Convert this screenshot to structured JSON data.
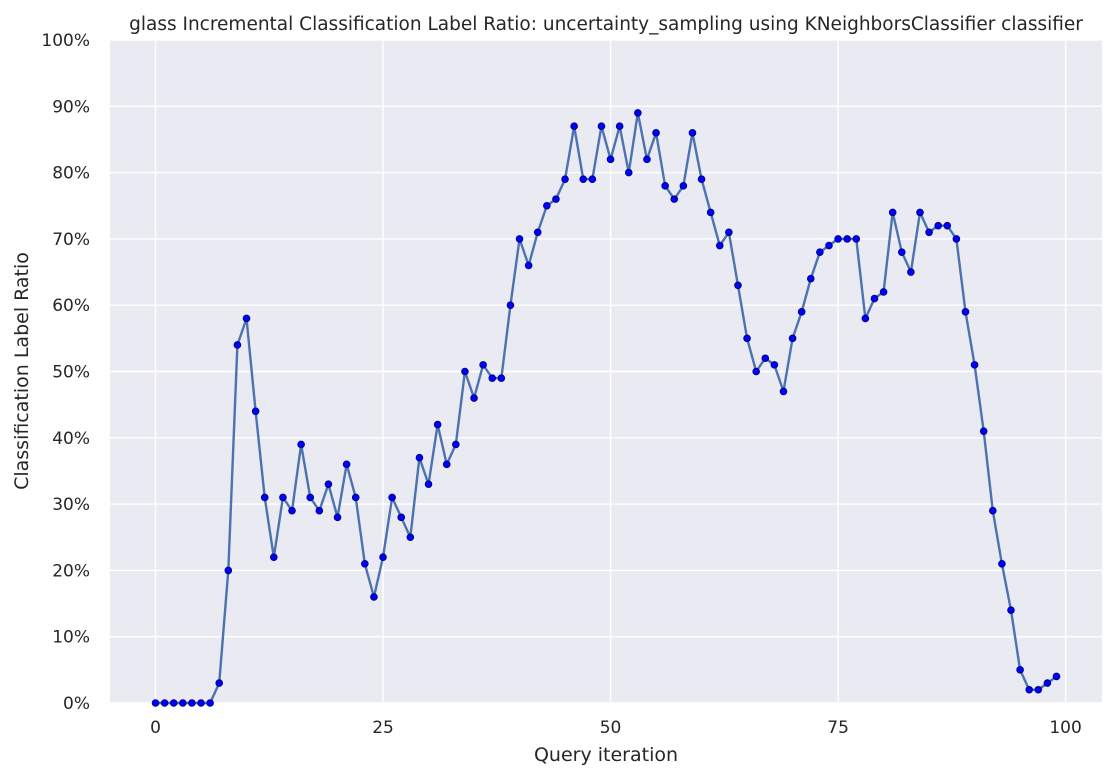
{
  "chart_data": {
    "type": "line",
    "title": "glass Incremental Classification Label Ratio: uncertainty_sampling using KNeighborsClassifier classifier",
    "xlabel": "Query iteration",
    "ylabel": "Classification Label Ratio",
    "xlim": [
      -5,
      104
    ],
    "ylim": [
      0,
      1
    ],
    "xticks": [
      0,
      25,
      50,
      75,
      100
    ],
    "xtick_labels": [
      "0",
      "25",
      "50",
      "75",
      "100"
    ],
    "yticks": [
      0,
      0.1,
      0.2,
      0.3,
      0.4,
      0.5,
      0.6,
      0.7,
      0.8,
      0.9,
      1.0
    ],
    "ytick_labels": [
      "0%",
      "10%",
      "20%",
      "30%",
      "40%",
      "50%",
      "60%",
      "70%",
      "80%",
      "90%",
      "100%"
    ],
    "grid": true,
    "legend": "none",
    "colors": {
      "background": "#eaeaf2",
      "grid": "#ffffff",
      "line": "#4c72b0",
      "marker_fill": "#0000ff",
      "marker_edge": "#00008b"
    },
    "series": [
      {
        "x": [
          0,
          1,
          2,
          3,
          4,
          5,
          6,
          7,
          8,
          9,
          10,
          11,
          12,
          13,
          14,
          15,
          16,
          17,
          18,
          19,
          20,
          21,
          22,
          23,
          24,
          25,
          26,
          27,
          28,
          29,
          30,
          31,
          32,
          33,
          34,
          35,
          36,
          37,
          38,
          39,
          40,
          41,
          42,
          43,
          44,
          45,
          46,
          47,
          48,
          49,
          50,
          51,
          52,
          53,
          54,
          55,
          56,
          57,
          58,
          59,
          60,
          61,
          62,
          63,
          64,
          65,
          66,
          67,
          68,
          69,
          70,
          71,
          72,
          73,
          74,
          75,
          76,
          77,
          78,
          79,
          80,
          81,
          82,
          83,
          84,
          85,
          86,
          87,
          88,
          89,
          90,
          91,
          92,
          93,
          94,
          95,
          96,
          97,
          98,
          99
        ],
        "y": [
          0,
          0,
          0,
          0,
          0,
          0,
          0,
          0.03,
          0.2,
          0.54,
          0.58,
          0.44,
          0.31,
          0.22,
          0.31,
          0.29,
          0.39,
          0.31,
          0.29,
          0.33,
          0.28,
          0.36,
          0.31,
          0.21,
          0.16,
          0.22,
          0.31,
          0.28,
          0.25,
          0.37,
          0.33,
          0.42,
          0.36,
          0.39,
          0.5,
          0.46,
          0.51,
          0.49,
          0.49,
          0.6,
          0.7,
          0.66,
          0.71,
          0.75,
          0.76,
          0.79,
          0.87,
          0.79,
          0.79,
          0.87,
          0.82,
          0.87,
          0.8,
          0.89,
          0.82,
          0.86,
          0.78,
          0.76,
          0.78,
          0.86,
          0.79,
          0.74,
          0.69,
          0.71,
          0.63,
          0.55,
          0.5,
          0.52,
          0.51,
          0.47,
          0.55,
          0.59,
          0.64,
          0.68,
          0.69,
          0.7,
          0.7,
          0.7,
          0.58,
          0.61,
          0.62,
          0.74,
          0.68,
          0.65,
          0.74,
          0.71,
          0.72,
          0.72,
          0.7,
          0.59,
          0.51,
          0.41,
          0.29,
          0.21,
          0.14,
          0.05,
          0.02,
          0.02,
          0.03,
          0.04
        ]
      }
    ]
  }
}
